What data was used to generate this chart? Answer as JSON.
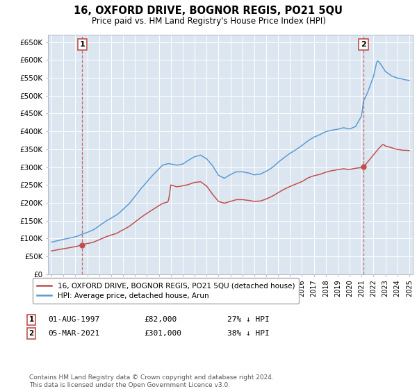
{
  "title": "16, OXFORD DRIVE, BOGNOR REGIS, PO21 5QU",
  "subtitle": "Price paid vs. HM Land Registry's House Price Index (HPI)",
  "legend_line1": "16, OXFORD DRIVE, BOGNOR REGIS, PO21 5QU (detached house)",
  "legend_line2": "HPI: Average price, detached house, Arun",
  "footnote": "Contains HM Land Registry data © Crown copyright and database right 2024.\nThis data is licensed under the Open Government Licence v3.0.",
  "sale1_date": "01-AUG-1997",
  "sale1_price": 82000,
  "sale1_label": "27% ↓ HPI",
  "sale2_date": "05-MAR-2021",
  "sale2_price": 301000,
  "sale2_label": "38% ↓ HPI",
  "ylim": [
    0,
    670000
  ],
  "yticks": [
    0,
    50000,
    100000,
    150000,
    200000,
    250000,
    300000,
    350000,
    400000,
    450000,
    500000,
    550000,
    600000,
    650000
  ],
  "ytick_labels": [
    "£0",
    "£50K",
    "£100K",
    "£150K",
    "£200K",
    "£250K",
    "£300K",
    "£350K",
    "£400K",
    "£450K",
    "£500K",
    "£550K",
    "£600K",
    "£650K"
  ],
  "hpi_color": "#5b9bd5",
  "price_color": "#c0504d",
  "background_color": "#dce6f1",
  "sale1_x": 1997.583,
  "sale2_x": 2021.167,
  "hpi_years": [
    1995,
    1995.083,
    1995.167,
    1995.25,
    1995.333,
    1995.417,
    1995.5,
    1995.583,
    1995.667,
    1995.75,
    1995.833,
    1995.917,
    1996,
    1996.083,
    1996.167,
    1996.25,
    1996.333,
    1996.417,
    1996.5,
    1996.583,
    1996.667,
    1996.75,
    1996.833,
    1996.917,
    1997,
    1997.083,
    1997.167,
    1997.25,
    1997.333,
    1997.417,
    1997.5,
    1997.583,
    1997.667,
    1997.75,
    1997.833,
    1997.917,
    1998,
    1998.083,
    1998.167,
    1998.25,
    1998.333,
    1998.417,
    1998.5,
    1998.583,
    1998.667,
    1998.75,
    1998.833,
    1998.917,
    1999,
    1999.083,
    1999.167,
    1999.25,
    1999.333,
    1999.417,
    1999.5,
    1999.583,
    1999.667,
    1999.75,
    1999.833,
    1999.917,
    2000,
    2000.083,
    2000.167,
    2000.25,
    2000.333,
    2000.417,
    2000.5,
    2000.583,
    2000.667,
    2000.75,
    2000.833,
    2000.917,
    2001,
    2001.083,
    2001.167,
    2001.25,
    2001.333,
    2001.417,
    2001.5,
    2001.583,
    2001.667,
    2001.75,
    2001.833,
    2001.917,
    2002,
    2002.083,
    2002.167,
    2002.25,
    2002.333,
    2002.417,
    2002.5,
    2002.583,
    2002.667,
    2002.75,
    2002.833,
    2002.917,
    2003,
    2003.083,
    2003.167,
    2003.25,
    2003.333,
    2003.417,
    2003.5,
    2003.583,
    2003.667,
    2003.75,
    2003.833,
    2003.917,
    2004,
    2004.083,
    2004.167,
    2004.25,
    2004.333,
    2004.417,
    2004.5,
    2004.583,
    2004.667,
    2004.75,
    2004.833,
    2004.917,
    2005,
    2005.083,
    2005.167,
    2005.25,
    2005.333,
    2005.417,
    2005.5,
    2005.583,
    2005.667,
    2005.75,
    2005.833,
    2005.917,
    2006,
    2006.083,
    2006.167,
    2006.25,
    2006.333,
    2006.417,
    2006.5,
    2006.583,
    2006.667,
    2006.75,
    2006.833,
    2006.917,
    2007,
    2007.083,
    2007.167,
    2007.25,
    2007.333,
    2007.417,
    2007.5,
    2007.583,
    2007.667,
    2007.75,
    2007.833,
    2007.917,
    2008,
    2008.083,
    2008.167,
    2008.25,
    2008.333,
    2008.417,
    2008.5,
    2008.583,
    2008.667,
    2008.75,
    2008.833,
    2008.917,
    2009,
    2009.083,
    2009.167,
    2009.25,
    2009.333,
    2009.417,
    2009.5,
    2009.583,
    2009.667,
    2009.75,
    2009.833,
    2009.917,
    2010,
    2010.083,
    2010.167,
    2010.25,
    2010.333,
    2010.417,
    2010.5,
    2010.583,
    2010.667,
    2010.75,
    2010.833,
    2010.917,
    2011,
    2011.083,
    2011.167,
    2011.25,
    2011.333,
    2011.417,
    2011.5,
    2011.583,
    2011.667,
    2011.75,
    2011.833,
    2011.917,
    2012,
    2012.083,
    2012.167,
    2012.25,
    2012.333,
    2012.417,
    2012.5,
    2012.583,
    2012.667,
    2012.75,
    2012.833,
    2012.917,
    2013,
    2013.083,
    2013.167,
    2013.25,
    2013.333,
    2013.417,
    2013.5,
    2013.583,
    2013.667,
    2013.75,
    2013.833,
    2013.917,
    2014,
    2014.083,
    2014.167,
    2014.25,
    2014.333,
    2014.417,
    2014.5,
    2014.583,
    2014.667,
    2014.75,
    2014.833,
    2014.917,
    2015,
    2015.083,
    2015.167,
    2015.25,
    2015.333,
    2015.417,
    2015.5,
    2015.583,
    2015.667,
    2015.75,
    2015.833,
    2015.917,
    2016,
    2016.083,
    2016.167,
    2016.25,
    2016.333,
    2016.417,
    2016.5,
    2016.583,
    2016.667,
    2016.75,
    2016.833,
    2016.917,
    2017,
    2017.083,
    2017.167,
    2017.25,
    2017.333,
    2017.417,
    2017.5,
    2017.583,
    2017.667,
    2017.75,
    2017.833,
    2017.917,
    2018,
    2018.083,
    2018.167,
    2018.25,
    2018.333,
    2018.417,
    2018.5,
    2018.583,
    2018.667,
    2018.75,
    2018.833,
    2018.917,
    2019,
    2019.083,
    2019.167,
    2019.25,
    2019.333,
    2019.417,
    2019.5,
    2019.583,
    2019.667,
    2019.75,
    2019.833,
    2019.917,
    2020,
    2020.083,
    2020.167,
    2020.25,
    2020.333,
    2020.417,
    2020.5,
    2020.583,
    2020.667,
    2020.75,
    2020.833,
    2020.917,
    2021,
    2021.083,
    2021.167,
    2021.25,
    2021.333,
    2021.417,
    2021.5,
    2021.583,
    2021.667,
    2021.75,
    2021.833,
    2021.917,
    2022,
    2022.083,
    2022.167,
    2022.25,
    2022.333,
    2022.417,
    2022.5,
    2022.583,
    2022.667,
    2022.75,
    2022.833,
    2022.917,
    2023,
    2023.083,
    2023.167,
    2023.25,
    2023.333,
    2023.417,
    2023.5,
    2023.583,
    2023.667,
    2023.75,
    2023.833,
    2023.917,
    2024,
    2024.083,
    2024.167,
    2024.25,
    2024.333,
    2024.417,
    2024.5,
    2024.583,
    2024.667,
    2024.75,
    2024.833,
    2024.917,
    2025
  ]
}
